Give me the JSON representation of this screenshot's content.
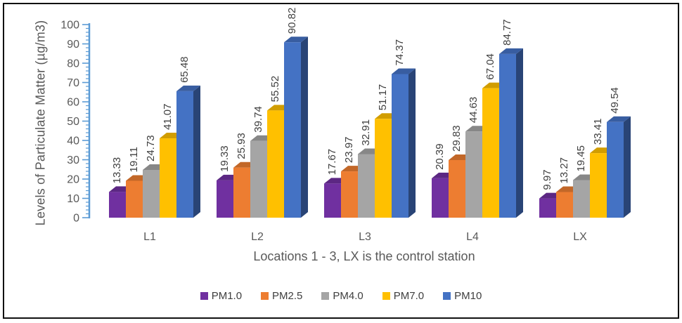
{
  "chart_data": {
    "type": "bar",
    "style": "3d-oblique",
    "title": "",
    "xlabel": "Locations 1 - 3, LX is the control station",
    "ylabel": "Levels of Particulate Matter (µg/m3)",
    "categories": [
      "L1",
      "L2",
      "L3",
      "L4",
      "LX"
    ],
    "series": [
      {
        "name": "PM1.0",
        "color": "#7030A0",
        "values": [
          13.33,
          19.33,
          17.67,
          20.39,
          9.97
        ]
      },
      {
        "name": "PM2.5",
        "color": "#ED7D31",
        "values": [
          19.11,
          25.93,
          23.97,
          29.83,
          13.27
        ]
      },
      {
        "name": "PM4.0",
        "color": "#A5A5A5",
        "values": [
          24.73,
          39.74,
          32.91,
          44.63,
          19.45
        ]
      },
      {
        "name": "PM7.0",
        "color": "#FFC000",
        "values": [
          41.07,
          55.52,
          51.17,
          67.04,
          33.41
        ]
      },
      {
        "name": "PM10",
        "color": "#4472C4",
        "values": [
          65.48,
          90.82,
          74.37,
          84.77,
          49.54
        ]
      }
    ],
    "data_labels_visible": true,
    "data_label_decimals": 2,
    "ylim": [
      0,
      100
    ],
    "yticks": [
      0,
      10,
      20,
      30,
      40,
      50,
      60,
      70,
      80,
      90,
      100
    ],
    "minor_tick_unit": 2,
    "grid": false,
    "legend_position": "bottom",
    "axis_color": "#5B9BD5",
    "axis_text_color": "#595959",
    "data_label_color": "#3f3f3f"
  }
}
